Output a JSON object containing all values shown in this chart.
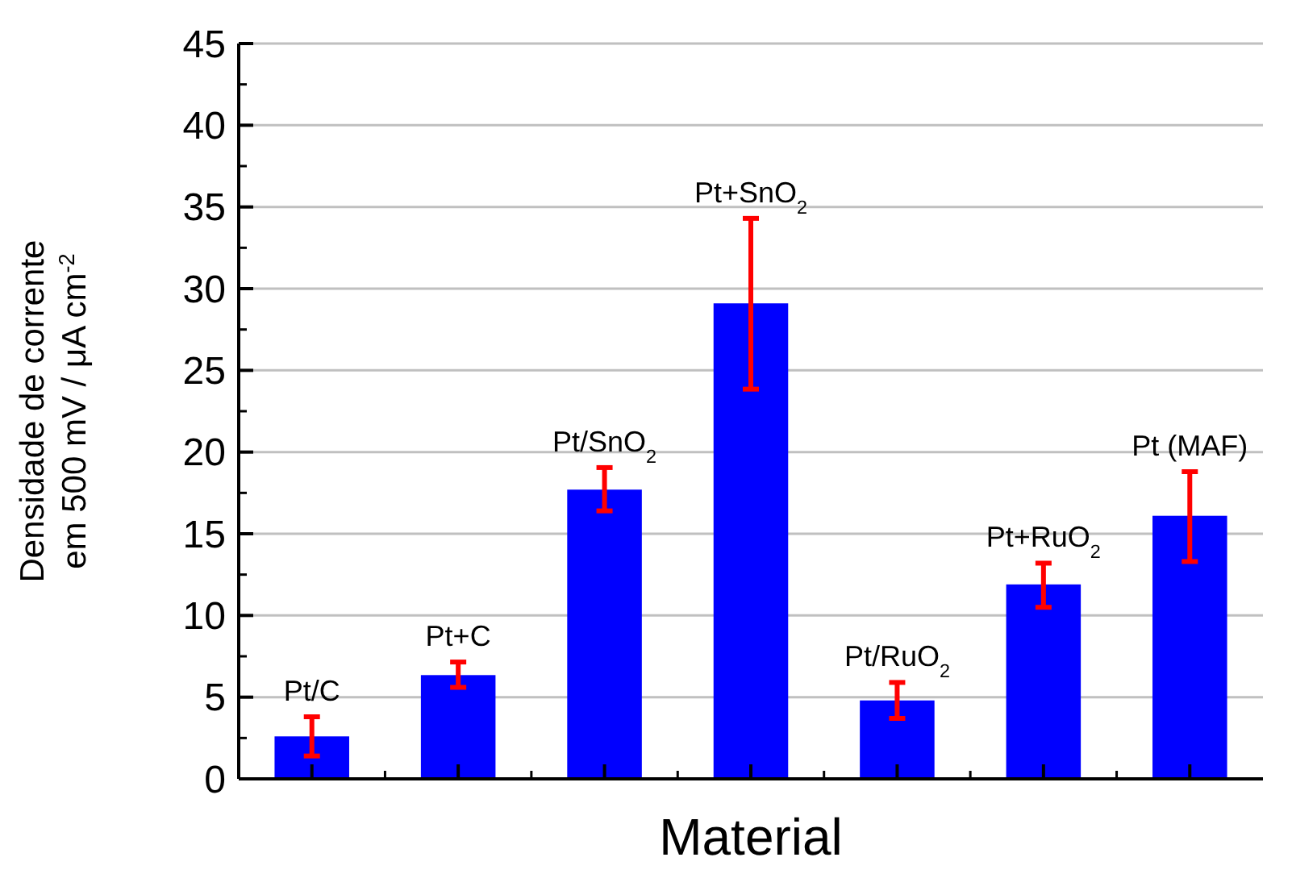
{
  "chart_data": {
    "type": "bar",
    "xlabel": "Material",
    "ylabel": "Densidade de corrente\nem 500 mV / μA cm$^{-2}$",
    "categories": [
      "Pt/C",
      "Pt+C",
      "Pt/SnO$_{2}$",
      "Pt+SnO$_{2}$",
      "Pt/RuO$_{2}$",
      "Pt+RuO$_{2}$",
      "Pt (MAF)"
    ],
    "values": [
      2.6,
      6.35,
      17.7,
      29.1,
      4.8,
      11.9,
      16.1
    ],
    "errors": [
      [
        1.4,
        3.8
      ],
      [
        5.6,
        7.15
      ],
      [
        16.4,
        19.05
      ],
      [
        23.85,
        34.3
      ],
      [
        3.7,
        5.9
      ],
      [
        10.5,
        13.2
      ],
      [
        13.3,
        18.8
      ]
    ],
    "color": "#0000ff",
    "ylim": [
      0,
      45
    ],
    "yticks": [
      0,
      5,
      10,
      15,
      20,
      25,
      30,
      35,
      40,
      45
    ],
    "grid": "y"
  }
}
